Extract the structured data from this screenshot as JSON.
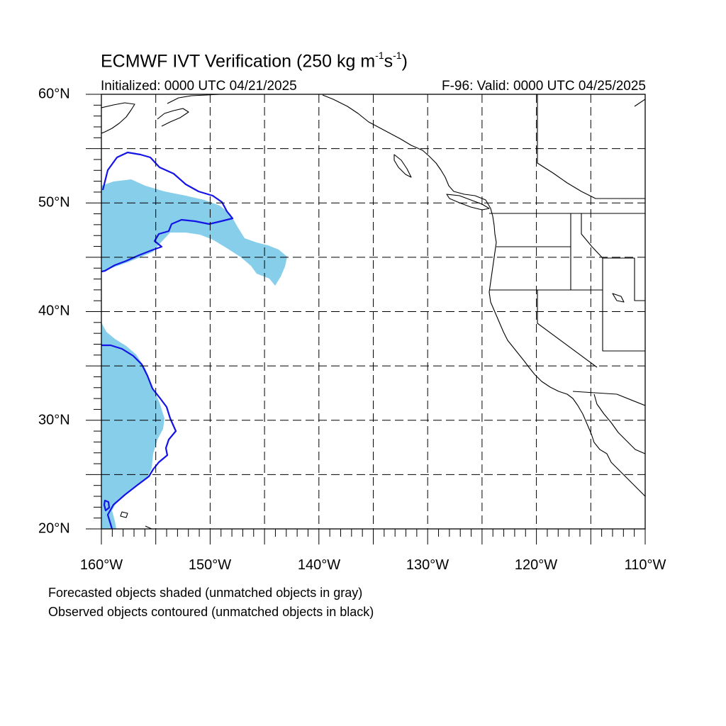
{
  "title": {
    "main": "ECMWF IVT Verification (250 kg m",
    "exp1": "-1",
    "mid": "s",
    "exp2": "-1",
    "close": ")"
  },
  "subtitle": {
    "initialized": "Initialized: 0000 UTC 04/21/2025",
    "valid": "F-96: Valid: 0000 UTC 04/25/2025"
  },
  "map": {
    "lon_range": [
      -160,
      -110
    ],
    "lat_range": [
      20,
      60
    ],
    "grid_lines": "dashed",
    "grid_lon_step": 5,
    "grid_lat_step": 5,
    "lat_labels": [
      "60°N",
      "50°N",
      "40°N",
      "30°N",
      "20°N"
    ],
    "lon_labels": [
      "160°W",
      "150°W",
      "140°W",
      "130°W",
      "120°W",
      "110°W"
    ],
    "colors": {
      "forecast_fill": "#87ceeb",
      "observed_contour": "#1414e6",
      "coastline": "#000000",
      "grid": "#000000"
    }
  },
  "footnotes": {
    "line1": "Forecasted objects shaded (unmatched objects in gray)",
    "line2": "Observed objects contoured (unmatched objects in black)"
  }
}
